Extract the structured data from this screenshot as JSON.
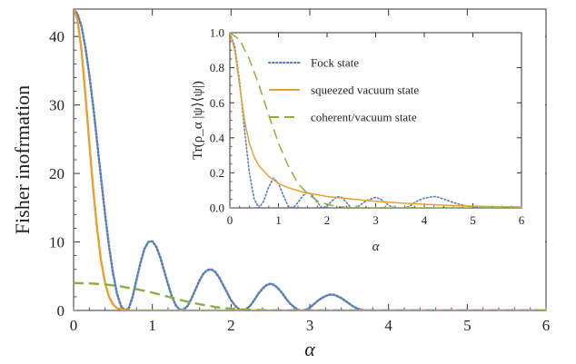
{
  "chart_data": [
    {
      "type": "line",
      "xlabel": "α",
      "ylabel": "Fisher inofrmation",
      "xlim": [
        0,
        6
      ],
      "ylim": [
        0,
        44
      ],
      "xticks": [
        "0",
        "1",
        "2",
        "3",
        "4",
        "5",
        "6"
      ],
      "yticks": [
        "0",
        "10",
        "20",
        "30",
        "40"
      ],
      "grid": false,
      "series": [
        {
          "name": "Fock state",
          "style": "dotted",
          "color": "#5b7fb8",
          "x": [
            0,
            0.05,
            0.1,
            0.15,
            0.2,
            0.25,
            0.3,
            0.35,
            0.4,
            0.45,
            0.5,
            0.55,
            0.6,
            0.65,
            0.7,
            0.75,
            0.8,
            0.85,
            0.9,
            0.95,
            1.0,
            1.05,
            1.1,
            1.15,
            1.2,
            1.25,
            1.3,
            1.35,
            1.4,
            1.45,
            1.5,
            1.55,
            1.6,
            1.65,
            1.7,
            1.75,
            1.8,
            1.85,
            1.9,
            1.95,
            2.0,
            2.05,
            2.1,
            2.15,
            2.2,
            2.25,
            2.3,
            2.35,
            2.4,
            2.45,
            2.5,
            2.55,
            2.6,
            2.65,
            2.7,
            2.75,
            2.8,
            2.85,
            2.9,
            2.95,
            3.0,
            3.05,
            3.1,
            3.15,
            3.2,
            3.25,
            3.3,
            3.35,
            3.4,
            3.45,
            3.5,
            3.55,
            3.6,
            3.65,
            3.7,
            3.75,
            3.8,
            3.85,
            3.9,
            3.95,
            4.0,
            4.1,
            4.2,
            4.3,
            4.4,
            4.5,
            4.6,
            4.7,
            4.8,
            4.9,
            5.0,
            5.2,
            5.4,
            5.6,
            5.8,
            6.0
          ],
          "y": [
            44,
            43.3,
            41.5,
            38.4,
            34.4,
            29.7,
            24.5,
            19.2,
            14.0,
            9.4,
            5.5,
            2.5,
            0.7,
            0.0,
            0.3,
            2.0,
            4.5,
            7.0,
            9.0,
            10.0,
            10.1,
            9.3,
            7.8,
            5.8,
            3.8,
            2.0,
            0.7,
            0.1,
            0.1,
            0.7,
            1.8,
            3.1,
            4.4,
            5.4,
            5.9,
            6.0,
            5.6,
            4.8,
            3.7,
            2.6,
            1.5,
            0.7,
            0.2,
            0.0,
            0.2,
            0.8,
            1.6,
            2.5,
            3.2,
            3.7,
            3.9,
            3.7,
            3.2,
            2.5,
            1.7,
            1.0,
            0.5,
            0.1,
            0.0,
            0.1,
            0.4,
            0.9,
            1.4,
            1.8,
            2.1,
            2.3,
            2.3,
            2.1,
            1.8,
            1.4,
            1.0,
            0.6,
            0.3,
            0.1,
            0.0,
            0.0,
            0.0,
            0.0,
            0.0,
            0.0,
            0.0,
            0.0,
            0.0,
            0.0,
            0.0,
            0.0,
            0.0,
            0.0,
            0.0,
            0.0,
            0.0,
            0.0,
            0.0,
            0.0,
            0.0,
            0.0
          ]
        },
        {
          "name": "squeezed vacuum state",
          "style": "solid",
          "color": "#e8a030",
          "x": [
            0,
            0.05,
            0.1,
            0.15,
            0.2,
            0.25,
            0.3,
            0.35,
            0.4,
            0.45,
            0.5,
            0.55,
            0.6,
            0.65,
            0.7,
            0.75,
            0.8,
            0.9,
            1.0,
            1.2,
            1.5,
            2.0,
            3.0,
            4.0,
            5.0,
            6.0
          ],
          "y": [
            44,
            42.5,
            38.0,
            31.5,
            24.5,
            17.5,
            11.8,
            7.2,
            4.0,
            2.0,
            0.9,
            0.35,
            0.15,
            0.05,
            0.02,
            0.01,
            0.0,
            0.0,
            0.0,
            0.0,
            0.0,
            0.0,
            0.0,
            0.0,
            0.0,
            0.0
          ]
        },
        {
          "name": "coherent/vacuum state",
          "style": "dashed",
          "color": "#8ab03a",
          "x": [
            0,
            0.2,
            0.4,
            0.6,
            0.8,
            1.0,
            1.2,
            1.4,
            1.6,
            1.8,
            2.0,
            2.2,
            2.4,
            2.6,
            3.0,
            4.0,
            5.0,
            6.0
          ],
          "y": [
            4.0,
            3.95,
            3.8,
            3.5,
            3.1,
            2.6,
            2.0,
            1.4,
            0.9,
            0.5,
            0.25,
            0.1,
            0.04,
            0.01,
            0.0,
            0.0,
            0.0,
            0.0
          ]
        }
      ]
    },
    {
      "type": "line",
      "inset": true,
      "xlabel": "α",
      "ylabel": "Tr(ρ_α |ψ⟩⟨ψ|)",
      "xlim": [
        0,
        6
      ],
      "ylim": [
        0,
        1.0
      ],
      "xticks": [
        "0",
        "1",
        "2",
        "3",
        "4",
        "5",
        "6"
      ],
      "yticks": [
        "0.0",
        "0.2",
        "0.4",
        "0.6",
        "0.8",
        "1.0"
      ],
      "legend_position": "top-right",
      "grid": false,
      "series": [
        {
          "name": "Fock state",
          "style": "dotted",
          "color": "#5b7fb8",
          "x": [
            0,
            0.1,
            0.2,
            0.3,
            0.4,
            0.5,
            0.6,
            0.7,
            0.8,
            0.9,
            1.0,
            1.1,
            1.2,
            1.3,
            1.4,
            1.5,
            1.6,
            1.7,
            1.8,
            1.9,
            2.0,
            2.1,
            2.2,
            2.3,
            2.4,
            2.5,
            2.6,
            2.7,
            2.8,
            2.9,
            3.0,
            3.1,
            3.2,
            3.3,
            3.4,
            3.5,
            3.6,
            3.7,
            3.8,
            3.9,
            4.0,
            4.1,
            4.2,
            4.3,
            4.4,
            4.5,
            4.6,
            4.8,
            5.0,
            5.2,
            5.4,
            5.6,
            5.8,
            6.0
          ],
          "y": [
            1.0,
            0.92,
            0.72,
            0.45,
            0.2,
            0.05,
            0.0,
            0.04,
            0.12,
            0.17,
            0.14,
            0.07,
            0.01,
            0.0,
            0.03,
            0.07,
            0.09,
            0.07,
            0.03,
            0.0,
            0.01,
            0.04,
            0.065,
            0.06,
            0.03,
            0.0,
            0.0,
            0.02,
            0.04,
            0.05,
            0.06,
            0.05,
            0.03,
            0.01,
            0.0,
            0.0,
            0.0,
            0.01,
            0.03,
            0.045,
            0.055,
            0.06,
            0.065,
            0.06,
            0.05,
            0.04,
            0.03,
            0.015,
            0.005,
            0.0,
            0.0,
            0.0,
            0.0,
            0.0
          ]
        },
        {
          "name": "squeezed vacuum state",
          "style": "solid",
          "color": "#e8a030",
          "x": [
            0,
            0.1,
            0.2,
            0.3,
            0.4,
            0.5,
            0.6,
            0.8,
            1.0,
            1.2,
            1.5,
            2.0,
            2.5,
            3.0,
            3.5,
            4.0,
            4.5,
            5.0,
            5.5,
            6.0
          ],
          "y": [
            1.0,
            0.9,
            0.7,
            0.5,
            0.37,
            0.29,
            0.24,
            0.18,
            0.14,
            0.115,
            0.09,
            0.065,
            0.05,
            0.038,
            0.028,
            0.02,
            0.014,
            0.01,
            0.007,
            0.005
          ]
        },
        {
          "name": "coherent/vacuum state",
          "style": "dashed",
          "color": "#8ab03a",
          "x": [
            0,
            0.2,
            0.4,
            0.6,
            0.8,
            1.0,
            1.2,
            1.4,
            1.6,
            1.8,
            2.0,
            2.2,
            2.4,
            2.6,
            3.0,
            4.0,
            5.0,
            6.0
          ],
          "y": [
            1.0,
            0.96,
            0.85,
            0.7,
            0.53,
            0.37,
            0.24,
            0.14,
            0.08,
            0.04,
            0.02,
            0.008,
            0.003,
            0.001,
            0.0,
            0.0,
            0.0,
            0.0
          ]
        }
      ]
    }
  ]
}
